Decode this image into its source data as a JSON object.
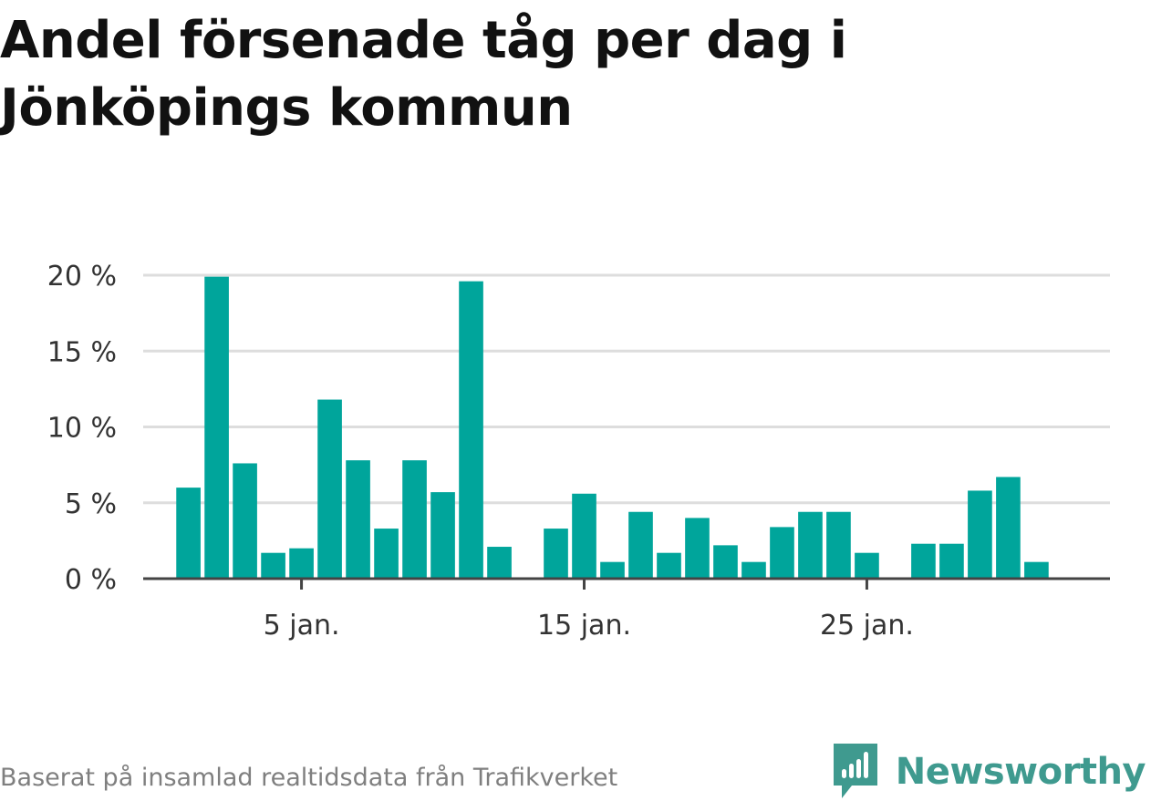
{
  "title": "Andel försenade tåg per dag i Jönköpings kommun",
  "source": "Baserat på insamlad realtidsdata från Trafikverket",
  "brand": {
    "name": "Newsworthy",
    "icon": "newsworthy-logo-icon",
    "color": "#3f9a8f"
  },
  "colors": {
    "bar": "#00a59b",
    "grid": "#dddddd",
    "axis": "#444444",
    "text": "#333333"
  },
  "chart_data": {
    "type": "bar",
    "x": [
      1,
      2,
      3,
      4,
      5,
      6,
      7,
      8,
      9,
      10,
      11,
      12,
      13,
      14,
      15,
      16,
      17,
      18,
      19,
      20,
      21,
      22,
      23,
      24,
      25,
      26,
      27,
      28,
      29,
      30,
      31
    ],
    "values": [
      6.0,
      19.9,
      7.6,
      1.7,
      2.0,
      11.8,
      7.8,
      3.3,
      7.8,
      5.7,
      19.6,
      2.1,
      0,
      3.3,
      5.6,
      1.1,
      4.4,
      1.7,
      4.0,
      2.2,
      1.1,
      3.4,
      4.4,
      4.4,
      1.7,
      0,
      2.3,
      2.3,
      5.8,
      6.7,
      1.1
    ],
    "xticks": [
      {
        "value": 5,
        "label": "5 jan."
      },
      {
        "value": 15,
        "label": "15 jan."
      },
      {
        "value": 25,
        "label": "25 jan."
      }
    ],
    "yticks": [
      {
        "value": 0,
        "label": "0 %"
      },
      {
        "value": 5,
        "label": "5 %"
      },
      {
        "value": 10,
        "label": "10 %"
      },
      {
        "value": 15,
        "label": "15 %"
      },
      {
        "value": 20,
        "label": "20 %"
      }
    ],
    "ylim": [
      0,
      20
    ],
    "xlim": [
      -0.6,
      33.6
    ],
    "grid": true,
    "xlabel": "",
    "ylabel": ""
  }
}
